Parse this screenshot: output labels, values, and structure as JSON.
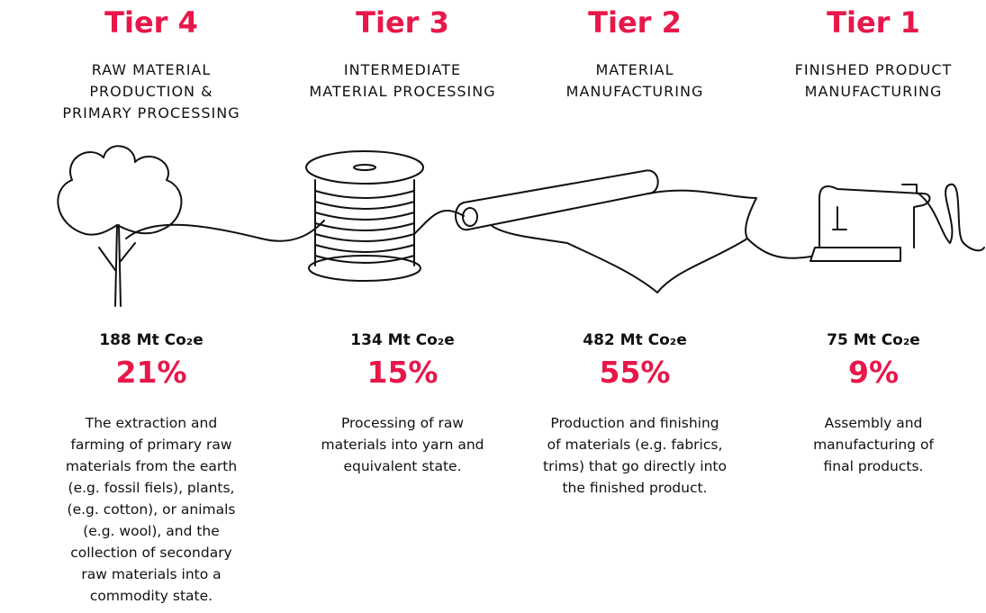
{
  "tiers": [
    {
      "title": "Tier 4",
      "subtitle": [
        "RAW MATERIAL",
        "PRODUCTION &",
        "PRIMARY PROCESSING"
      ],
      "emissions": "188 Mt Co₂e",
      "share": "21%",
      "description": [
        "The extraction and",
        "farming of primary raw",
        "materials from the earth",
        "(e.g. fossil fiels), plants,",
        "(e.g. cotton), or animals",
        "(e.g. wool), and the",
        "collection of secondary",
        "raw materials into a",
        "commodity state."
      ]
    },
    {
      "title": "Tier 3",
      "subtitle": [
        "INTERMEDIATE",
        "MATERIAL PROCESSING"
      ],
      "emissions": "134 Mt Co₂e",
      "share": "15%",
      "description": [
        "Processing of raw",
        "materials into yarn and",
        "equivalent state."
      ]
    },
    {
      "title": "Tier 2",
      "subtitle": [
        "MATERIAL",
        "MANUFACTURING"
      ],
      "emissions": "482 Mt Co₂e",
      "share": "55%",
      "description": [
        "Production and finishing",
        "of materials (e.g. fabrics,",
        "trims) that go directly into",
        "the finished product."
      ]
    },
    {
      "title": "Tier 1",
      "subtitle": [
        "FINISHED PRODUCT",
        "MANUFACTURING"
      ],
      "emissions": "75 Mt Co₂e",
      "share": "9%",
      "description": [
        "Assembly and",
        "manufacturing of",
        "final products."
      ]
    }
  ]
}
